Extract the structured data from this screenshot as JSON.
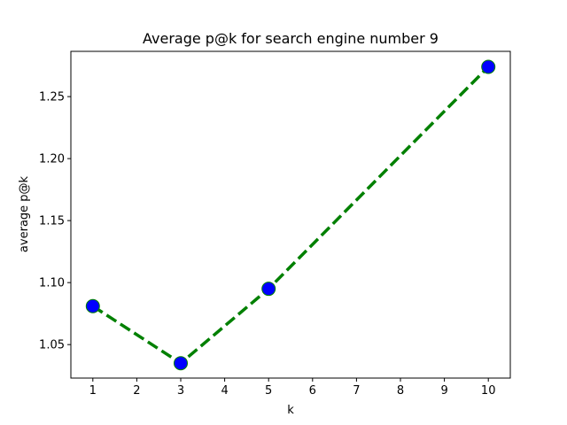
{
  "chart_data": {
    "type": "line",
    "title": "Average p@k for search engine number 9",
    "xlabel": "k",
    "ylabel": "average p@k",
    "x": [
      1,
      3,
      5,
      10
    ],
    "series": [
      {
        "values": [
          1.081,
          1.035,
          1.095,
          1.274
        ]
      }
    ],
    "xlim": [
      0.5,
      10.5
    ],
    "ylim": [
      1.023,
      1.2865
    ],
    "xticks": [
      1,
      2,
      3,
      4,
      5,
      6,
      7,
      8,
      9,
      10
    ],
    "yticks": [
      1.05,
      1.1,
      1.15,
      1.2,
      1.25
    ],
    "ytick_labels": [
      "1.05",
      "1.10",
      "1.15",
      "1.20",
      "1.25"
    ],
    "grid": false,
    "line_color": "#008000",
    "line_style": "dashed",
    "marker_face_color": "#0000ff",
    "marker_edge_color": "#008000"
  }
}
